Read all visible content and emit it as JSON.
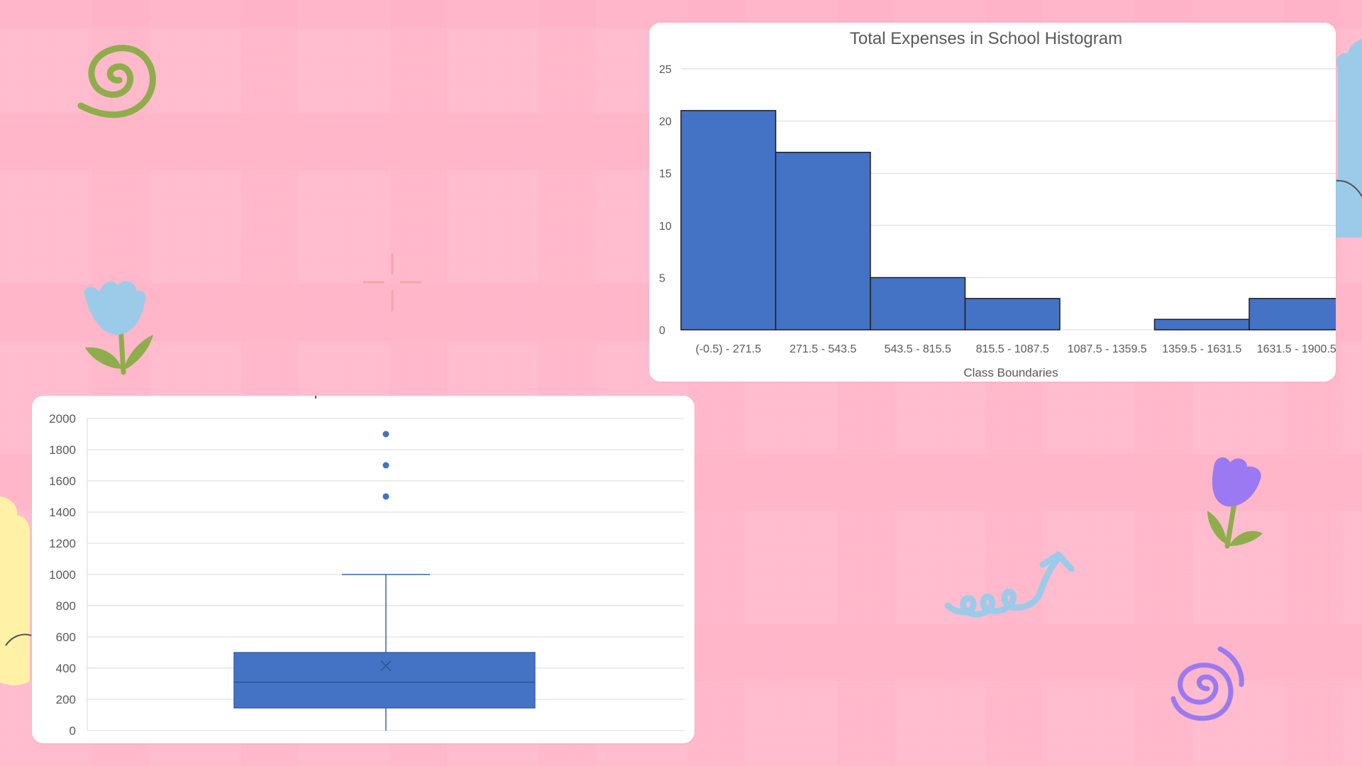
{
  "colors": {
    "bar_fill": "#4472c4",
    "bar_stroke": "#1f1f1f",
    "grid": "#d9d9d9",
    "text": "#595959",
    "box_fill": "#4472c4",
    "box_stroke": "#3a63ad"
  },
  "icons": [
    "spiral-green-icon",
    "tulip-blue-icon",
    "crosshair-icon",
    "tulip-purple-icon",
    "squiggle-arrow-icon",
    "spiral-purple-icon",
    "cloud-blue-icon",
    "cloud-yellow-icon"
  ],
  "chart_data": [
    {
      "type": "bar",
      "title": "Total Expenses in School Histogram",
      "xlabel": "Class Boundaries",
      "ylabel": "",
      "categories": [
        "(-0.5) - 271.5",
        "271.5 - 543.5",
        "543.5 - 815.5",
        "815.5 - 1087.5",
        "1087.5 - 1359.5",
        "1359.5 - 1631.5",
        "1631.5 - 1900.5"
      ],
      "category_labels_displayed": [
        "(-0.5) - 271.5",
        "271.5 - 543.5",
        "543.5 - 815.5",
        "815.5 - 1087.5",
        "1087.5 - 1359.5",
        "1359.5 - 1631.5",
        "1631.5 - 1900.5"
      ],
      "values": [
        21,
        17,
        5,
        3,
        0,
        1,
        3
      ],
      "ylim": [
        0,
        25
      ],
      "yticks": [
        0,
        5,
        10,
        15,
        20,
        25
      ],
      "grid": true
    },
    {
      "type": "box",
      "title": "",
      "ylim": [
        0,
        2000
      ],
      "yticks": [
        0,
        200,
        400,
        600,
        800,
        1000,
        1200,
        1400,
        1600,
        1800,
        2000
      ],
      "min": 0,
      "q1": 145,
      "median": 310,
      "q3": 500,
      "max": 1000,
      "mean": 415,
      "outliers": [
        1500,
        1700,
        1900
      ],
      "grid": true
    }
  ]
}
